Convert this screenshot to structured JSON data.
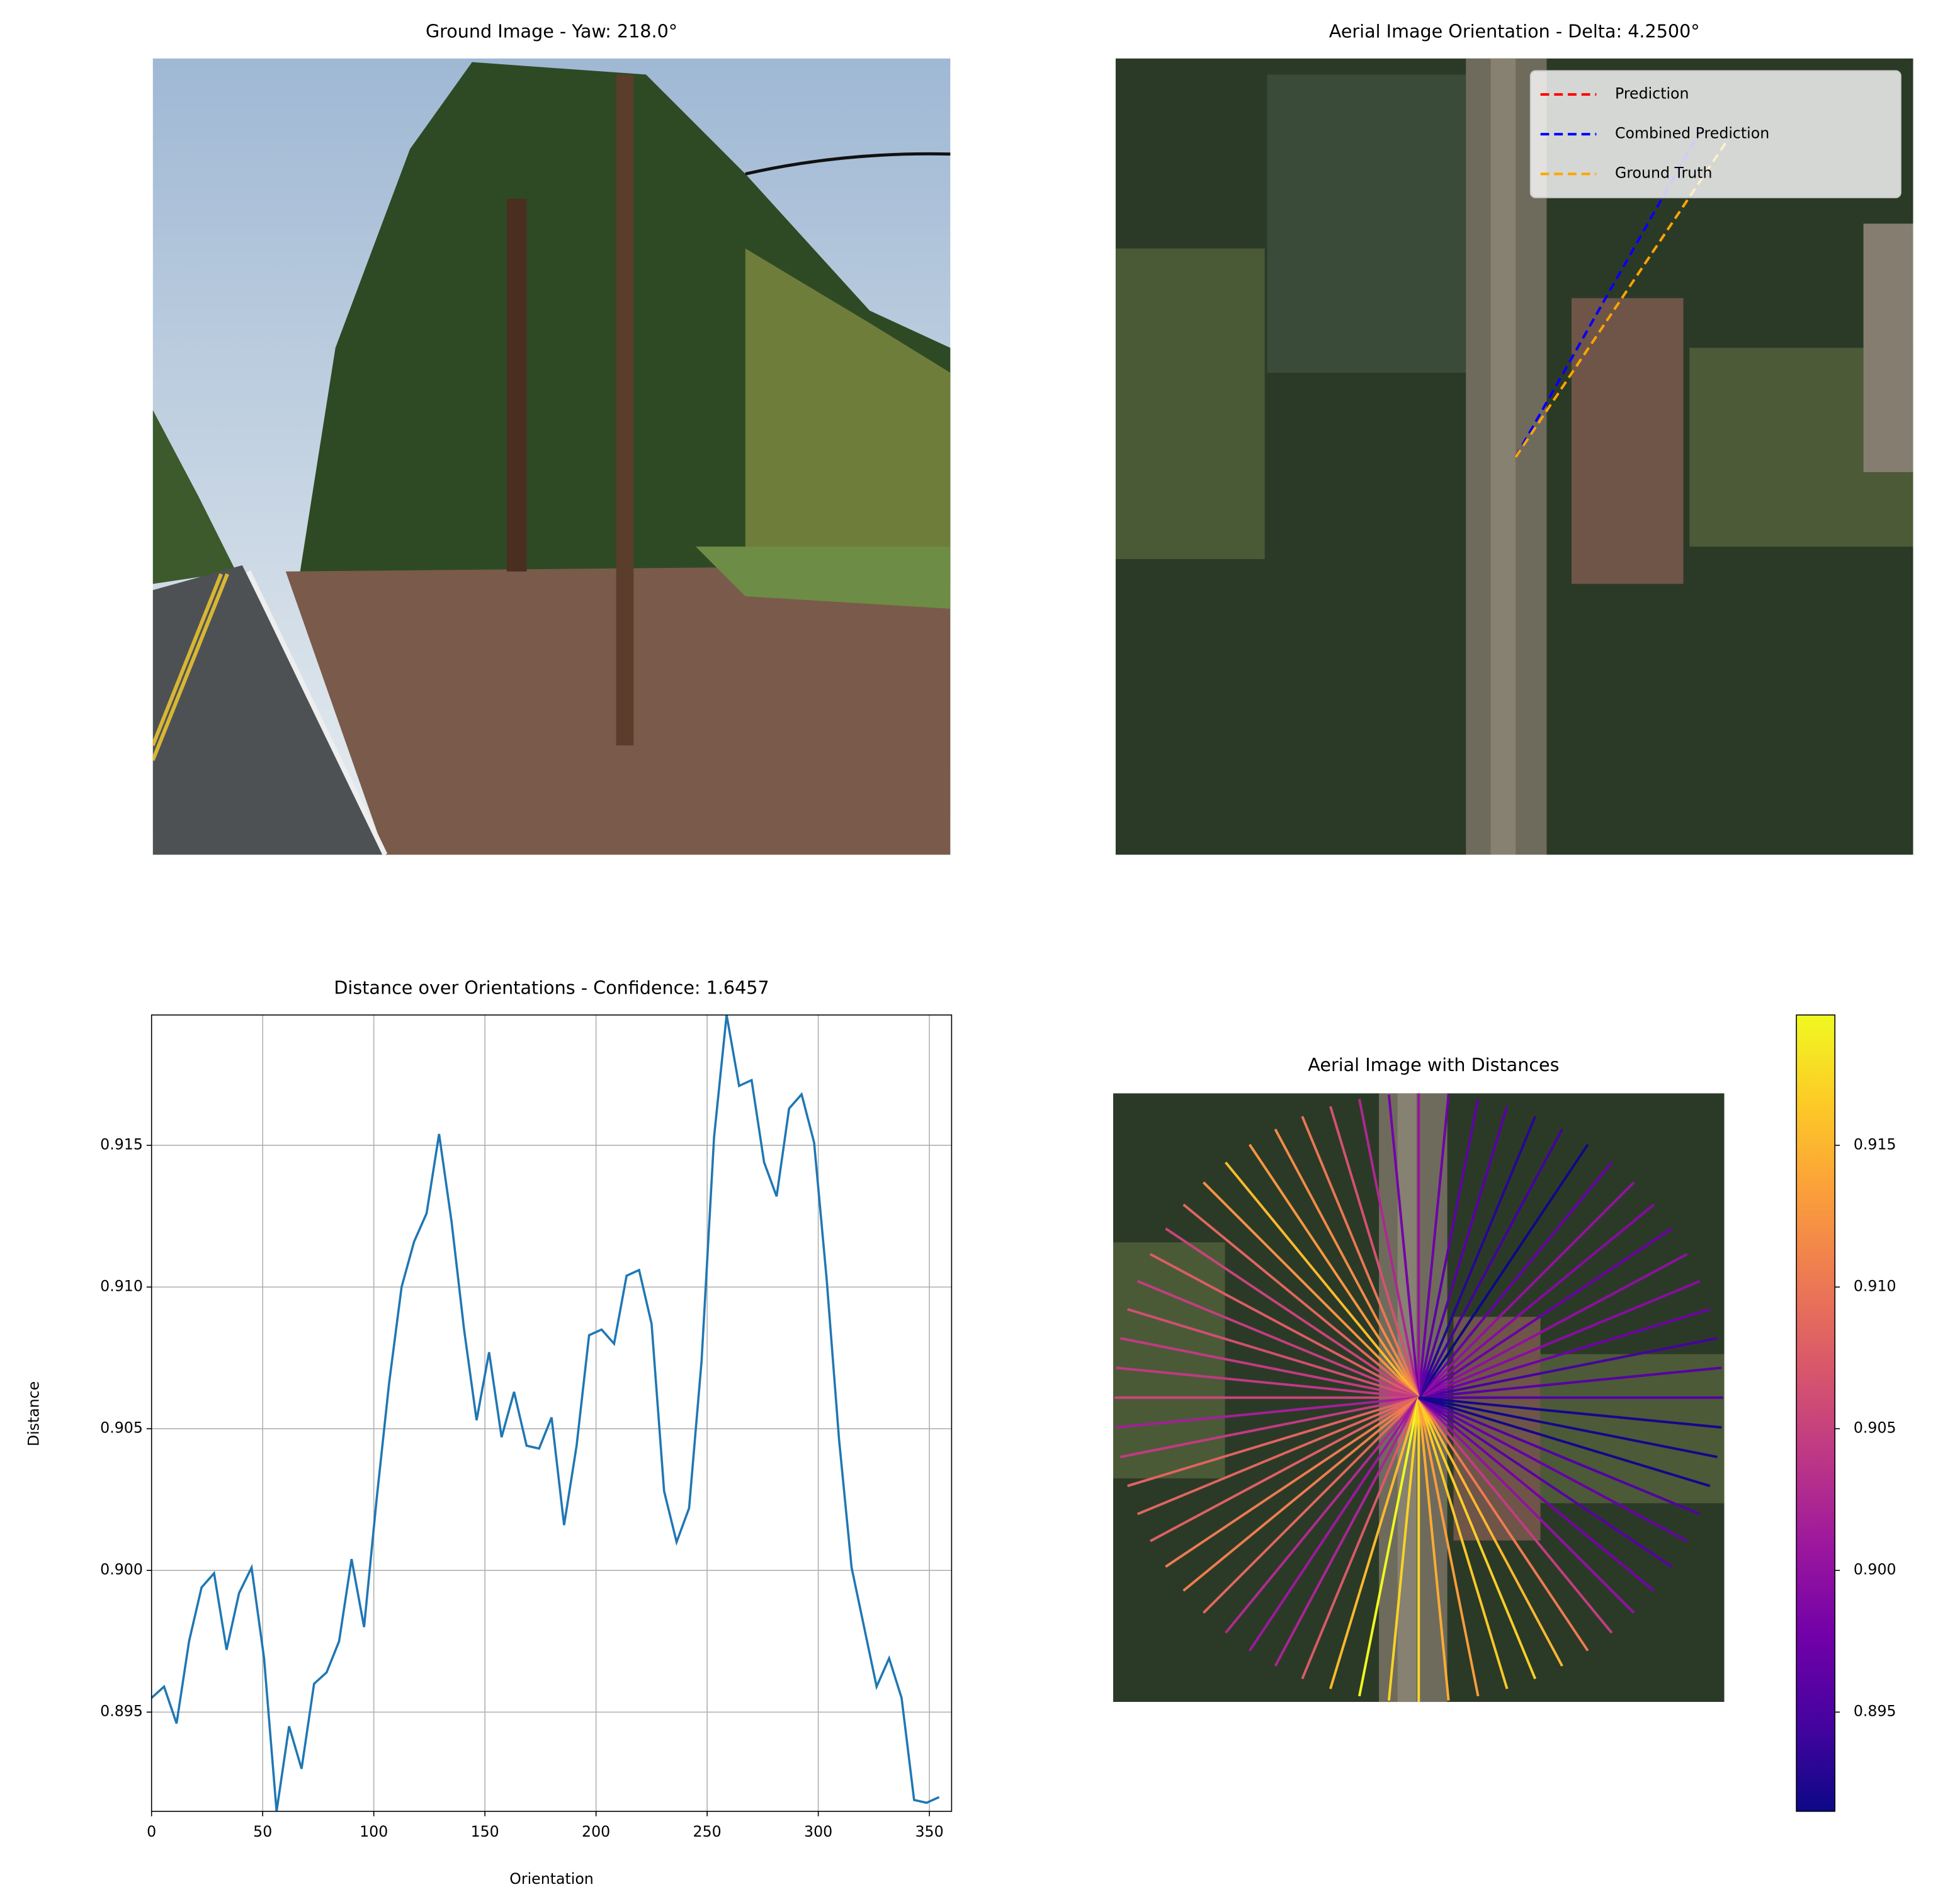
{
  "chart_data": [
    {
      "type": "image",
      "title": "Ground Image - Yaw: 218.0°"
    },
    {
      "type": "rays",
      "title": "Aerial Image Orientation - Delta: 4.2500°",
      "line_style": "dashed",
      "legend": "upper right",
      "series": [
        {
          "name": "Prediction",
          "color": "#ff0000",
          "values": [
            29.5
          ]
        },
        {
          "name": "Combined Prediction",
          "color": "#0000ff",
          "values": [
            29.5
          ]
        },
        {
          "name": "Ground Truth",
          "color": "#ffa500",
          "values": [
            33.75
          ]
        }
      ]
    },
    {
      "type": "line",
      "title": "Distance over Orientations - Confidence: 1.6457",
      "x_label": "Orientation",
      "y_label": "Distance",
      "color": "#1f77b4",
      "grid": true,
      "x": [
        0,
        5.625,
        11.25,
        16.875,
        22.5,
        28.125,
        33.75,
        39.375,
        45,
        50.625,
        56.25,
        61.875,
        67.5,
        73.125,
        78.75,
        84.375,
        90,
        95.625,
        101.25,
        106.875,
        112.5,
        118.125,
        123.75,
        129.375,
        135,
        140.625,
        146.25,
        151.875,
        157.5,
        163.125,
        168.75,
        174.375,
        180,
        185.625,
        191.25,
        196.875,
        202.5,
        208.125,
        213.75,
        219.375,
        225,
        230.625,
        236.25,
        241.875,
        247.5,
        253.125,
        258.75,
        264.375,
        270,
        275.625,
        281.25,
        286.875,
        292.5,
        298.125,
        303.75,
        309.375,
        315,
        320.625,
        326.25,
        331.875,
        337.5,
        343.125,
        348.75,
        354.375
      ],
      "values": [
        0.8955,
        0.8959,
        0.8946,
        0.8975,
        0.8994,
        0.8999,
        0.8972,
        0.8992,
        0.9001,
        0.8969,
        0.8915,
        0.8945,
        0.893,
        0.896,
        0.8964,
        0.8975,
        0.9004,
        0.898,
        0.9025,
        0.9066,
        0.91,
        0.9116,
        0.9126,
        0.9154,
        0.9123,
        0.9085,
        0.9053,
        0.9077,
        0.9047,
        0.9063,
        0.9044,
        0.9043,
        0.9054,
        0.9016,
        0.9044,
        0.9083,
        0.9085,
        0.908,
        0.9104,
        0.9106,
        0.9087,
        0.9028,
        0.901,
        0.9022,
        0.9074,
        0.9153,
        0.9196,
        0.9171,
        0.9173,
        0.9144,
        0.9132,
        0.9163,
        0.9168,
        0.9151,
        0.9103,
        0.9046,
        0.9001,
        0.898,
        0.8959,
        0.8969,
        0.8955,
        0.8919,
        0.8918,
        0.892
      ],
      "xlim": [
        0,
        360
      ],
      "ylim": [
        0.8915,
        0.9196
      ],
      "xticks": [
        0,
        50,
        100,
        150,
        200,
        250,
        300,
        350
      ],
      "yticks": [
        0.895,
        {
          "value": 0.9,
          "label": "0.900"
        },
        0.905,
        {
          "value": 0.91,
          "label": "0.910"
        },
        0.915
      ]
    },
    {
      "type": "radial",
      "title": "Aerial Image with Distances",
      "colormap": "plasma",
      "clim": [
        0.8915,
        0.9196
      ],
      "cticks": [
        0.895,
        {
          "value": 0.9,
          "label": "0.900"
        },
        0.905,
        {
          "value": 0.91,
          "label": "0.910"
        },
        0.915
      ]
    }
  ]
}
